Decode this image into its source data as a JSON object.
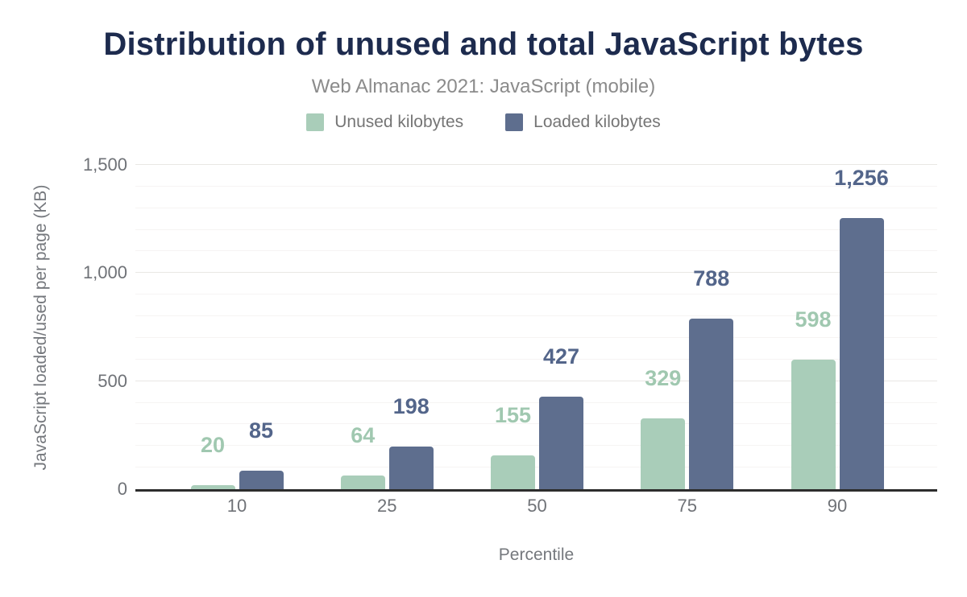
{
  "chart": {
    "title": "Distribution of unused and total JavaScript bytes",
    "subtitle": "Web Almanac 2021: JavaScript (mobile)"
  },
  "chart_data": {
    "type": "bar",
    "title": "Distribution of unused and total JavaScript bytes",
    "subtitle": "Web Almanac 2021: JavaScript (mobile)",
    "categories": [
      "10",
      "25",
      "50",
      "75",
      "90"
    ],
    "series": [
      {
        "name": "Unused kilobytes",
        "color": "#a9cdb9",
        "label_color": "#a0c8b0",
        "values": [
          20,
          64,
          155,
          329,
          598
        ]
      },
      {
        "name": "Loaded kilobytes",
        "color": "#5e6e8e",
        "label_color": "#53658a",
        "values": [
          85,
          198,
          427,
          788,
          1256
        ]
      }
    ],
    "xlabel": "Percentile",
    "ylabel": "JavaScript loaded/used per page (KB)",
    "ylim": [
      0,
      1500
    ],
    "yticks": [
      0,
      500,
      1000,
      1500
    ],
    "minor_grid_step": 100,
    "grid": true,
    "legend_position": "top",
    "colors": {
      "title": "#1d2b4e",
      "subtitle": "#8b8b8b",
      "axis_line": "#2d2d2d",
      "tick_text": "#6f7277"
    }
  }
}
